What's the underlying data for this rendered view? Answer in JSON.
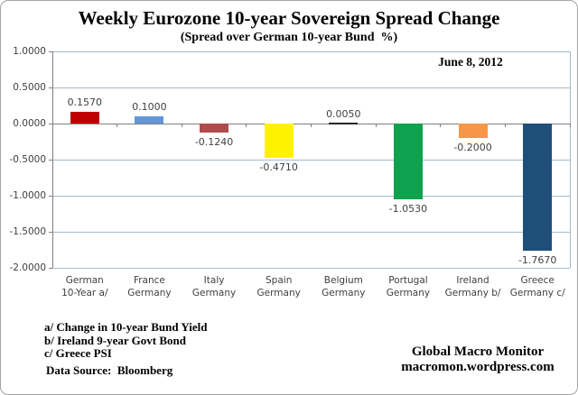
{
  "header": {
    "title": "Weekly Eurozone 10-year Sovereign Spread Change",
    "subtitle": "(Spread over German 10-year Bund  %)",
    "date_label": "June 8, 2012"
  },
  "chart_data": {
    "type": "bar",
    "categories": [
      {
        "line1": "German",
        "line2": "10-Year a/"
      },
      {
        "line1": "France",
        "line2": "Germany"
      },
      {
        "line1": "Italy",
        "line2": "Germany"
      },
      {
        "line1": "Spain",
        "line2": "Germany"
      },
      {
        "line1": "Belgium",
        "line2": "Germany"
      },
      {
        "line1": "Portugal",
        "line2": "Germany"
      },
      {
        "line1": "Ireland",
        "line2": "Germany b/"
      },
      {
        "line1": "Greece",
        "line2": "Germany c/"
      }
    ],
    "values": [
      0.157,
      0.1,
      -0.124,
      -0.471,
      0.005,
      -1.053,
      -0.2,
      -1.767
    ],
    "value_labels": [
      "0.1570",
      "0.1000",
      "-0.1240",
      "-0.4710",
      "0.0050",
      "-1.0530",
      "-0.2000",
      "-1.7670"
    ],
    "bar_colors": [
      "#c00000",
      "#6496d7",
      "#af4b4b",
      "#fff200",
      "#262626",
      "#0fa24e",
      "#f79646",
      "#1f4e79"
    ],
    "ylim": [
      -2.0,
      1.0
    ],
    "y_ticks": [
      {
        "value": 1.0,
        "label": "1.0000"
      },
      {
        "value": 0.5,
        "label": "0.5000"
      },
      {
        "value": 0.0,
        "label": "0.0000"
      },
      {
        "value": -0.5,
        "label": "-0.5000"
      },
      {
        "value": -1.0,
        "label": "-1.0000"
      },
      {
        "value": -1.5,
        "label": "-1.5000"
      },
      {
        "value": -2.0,
        "label": "-2.0000"
      }
    ],
    "grid": true,
    "gridline_color": "#a7bacb",
    "axis_color": "#7f7f7f",
    "legend": "none",
    "xlabel": "",
    "ylabel": ""
  },
  "footnotes": {
    "lines": [
      "a/ Change in 10-year Bund Yield",
      "b/ Ireland 9-year Govt Bond",
      "c/ Greece PSI"
    ],
    "source": "Data Source:  Bloomberg"
  },
  "footer": {
    "brand": "Global Macro Monitor",
    "url": "macromon.wordpress.com"
  }
}
